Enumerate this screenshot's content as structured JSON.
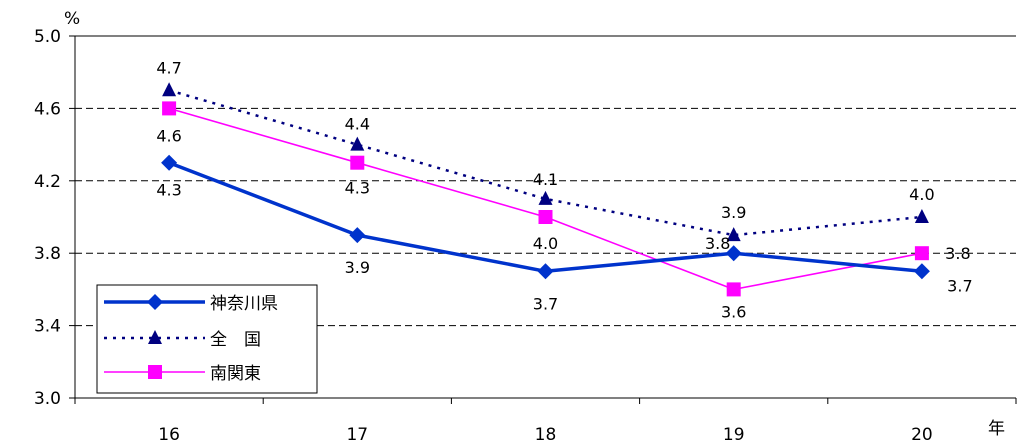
{
  "chart_data": {
    "type": "line",
    "y_unit": "%",
    "x_unit": "年",
    "categories": [
      "16",
      "17",
      "18",
      "19",
      "20"
    ],
    "ylim": [
      3.0,
      5.0
    ],
    "yticks": [
      "3.0",
      "3.4",
      "3.8",
      "4.2",
      "4.6",
      "5.0"
    ],
    "grid": "horizontal-dashed",
    "legend_position": "bottom-left",
    "series": [
      {
        "name": "神奈川県",
        "values": [
          4.3,
          3.9,
          3.7,
          3.8,
          3.7
        ],
        "labels": [
          "4.3",
          "3.9",
          "3.7",
          "3.8",
          "3.7"
        ],
        "color": "#0033cc",
        "marker": "diamond",
        "line": "solid-thick"
      },
      {
        "name": "全　国",
        "values": [
          4.7,
          4.4,
          4.1,
          3.9,
          4.0
        ],
        "labels": [
          "4.7",
          "4.4",
          "4.1",
          "3.9",
          "4.0"
        ],
        "color": "#000080",
        "marker": "triangle",
        "line": "dotted"
      },
      {
        "name": "南関東",
        "values": [
          4.6,
          4.3,
          4.0,
          3.6,
          3.8
        ],
        "labels": [
          "4.6",
          "4.3",
          "4.0",
          "3.6",
          "3.8"
        ],
        "color": "#ff00ff",
        "marker": "square",
        "line": "solid-thin"
      }
    ]
  }
}
